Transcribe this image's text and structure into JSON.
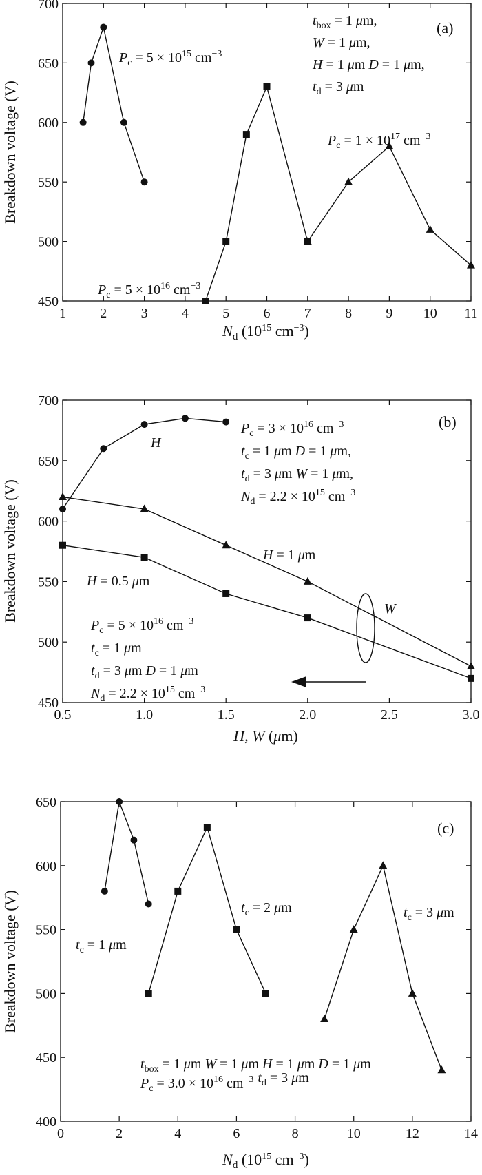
{
  "chart_data": [
    {
      "type": "line",
      "panel": "(a)",
      "xlabel_main": "N",
      "xlabel_sub": "d",
      "xlabel_rest": " (10",
      "xlabel_sup": "15",
      "xlabel_end": " cm⁻³)",
      "ylabel": "Breakdown voltage (V)",
      "xlim": [
        1,
        11
      ],
      "ylim": [
        450,
        700
      ],
      "xticks": [
        1,
        2,
        3,
        4,
        5,
        6,
        7,
        8,
        9,
        10,
        11
      ],
      "xtick_labels": [
        "1",
        "2",
        "3",
        "4",
        "5",
        "6",
        "7",
        "8",
        "9",
        "10",
        "11"
      ],
      "yticks": [
        450,
        500,
        550,
        600,
        650,
        700
      ],
      "ytick_labels": [
        "450",
        "500",
        "550",
        "600",
        "650",
        "700"
      ],
      "series": [
        {
          "marker": "circle",
          "x": [
            1.5,
            1.7,
            2.0,
            2.5,
            3.0
          ],
          "y": [
            600,
            650,
            680,
            600,
            550
          ]
        },
        {
          "marker": "square",
          "x": [
            4.5,
            5.0,
            5.5,
            6.0,
            7.0
          ],
          "y": [
            450,
            500,
            590,
            630,
            500
          ]
        },
        {
          "marker": "triangle",
          "x": [
            7.0,
            8.0,
            9.0,
            10.0,
            11.0
          ],
          "y": [
            500,
            550,
            580,
            510,
            480
          ]
        }
      ],
      "annotations": [
        {
          "key": "pc1",
          "text": "Pc = 5 × 10¹⁵ cm⁻³"
        },
        {
          "key": "pc2",
          "text": "Pc = 5 × 10¹⁶ cm⁻³"
        },
        {
          "key": "pc3",
          "text": "Pc = 1 × 10¹⁷ cm⁻³"
        },
        {
          "key": "cond1",
          "text": "tbox = 1 μm,"
        },
        {
          "key": "cond2",
          "text": "W = 1 μm,"
        },
        {
          "key": "cond3",
          "text": "H = 1 μm  D = 1 μm,"
        },
        {
          "key": "cond4",
          "text": "td = 3 μm"
        }
      ]
    },
    {
      "type": "line",
      "panel": "(b)",
      "xlabel": "H, W (μm)",
      "ylabel": "Breakdown voltage (V)",
      "xlim": [
        0.5,
        3.0
      ],
      "ylim": [
        450,
        700
      ],
      "xticks": [
        0.5,
        1.0,
        1.5,
        2.0,
        2.5,
        3.0
      ],
      "xtick_labels": [
        "0.5",
        "1.0",
        "1.5",
        "2.0",
        "2.5",
        "3.0"
      ],
      "yticks": [
        450,
        500,
        550,
        600,
        650,
        700
      ],
      "ytick_labels": [
        "450",
        "500",
        "550",
        "600",
        "650",
        "700"
      ],
      "series": [
        {
          "name": "H",
          "marker": "circle",
          "x": [
            0.5,
            0.75,
            1.0,
            1.25,
            1.5
          ],
          "y": [
            610,
            660,
            680,
            685,
            682
          ]
        },
        {
          "name": "H = 1 μm",
          "marker": "triangle",
          "x": [
            0.5,
            1.0,
            1.5,
            2.0,
            3.0
          ],
          "y": [
            620,
            610,
            580,
            550,
            480
          ]
        },
        {
          "name": "H = 0.5 μm",
          "marker": "square",
          "x": [
            0.5,
            1.0,
            1.5,
            2.0,
            3.0
          ],
          "y": [
            580,
            570,
            540,
            520,
            470
          ]
        }
      ],
      "annotations": [
        {
          "key": "H",
          "text": "H"
        },
        {
          "key": "W",
          "text": "W"
        },
        {
          "key": "h1",
          "text": "H = 1 μm"
        },
        {
          "key": "h05",
          "text": "H = 0.5 μm"
        },
        {
          "key": "c1",
          "text": "Pc = 3 × 10¹⁶ cm⁻³"
        },
        {
          "key": "c2",
          "text": "tc = 1 μm  D = 1 μm,"
        },
        {
          "key": "c3",
          "text": "td = 3 μm  W = 1 μm,"
        },
        {
          "key": "c4",
          "text": "Nd = 2.2 × 10¹⁵ cm⁻³"
        },
        {
          "key": "d1",
          "text": "Pc = 5 × 10¹⁶ cm⁻³"
        },
        {
          "key": "d2",
          "text": "tc = 1 μm"
        },
        {
          "key": "d3",
          "text": "td = 3 μm  D = 1 μm"
        },
        {
          "key": "d4",
          "text": "Nd = 2.2 × 10¹⁵ cm⁻³"
        }
      ]
    },
    {
      "type": "line",
      "panel": "(c)",
      "xlabel": "Nd (10¹⁵ cm⁻³)",
      "ylabel": "Breakdown voltage (V)",
      "xlim": [
        0,
        14
      ],
      "ylim": [
        400,
        650
      ],
      "xticks": [
        0,
        2,
        4,
        6,
        8,
        10,
        12,
        14
      ],
      "xtick_labels": [
        "0",
        "2",
        "4",
        "6",
        "8",
        "10",
        "12",
        "14"
      ],
      "yticks": [
        400,
        450,
        500,
        550,
        600,
        650
      ],
      "ytick_labels": [
        "400",
        "450",
        "500",
        "550",
        "600",
        "650"
      ],
      "series": [
        {
          "name": "tc = 1 μm",
          "marker": "circle",
          "x": [
            1.5,
            2.0,
            2.5,
            3.0
          ],
          "y": [
            580,
            650,
            620,
            570
          ]
        },
        {
          "name": "tc = 2 μm",
          "marker": "square",
          "x": [
            3.0,
            4.0,
            5.0,
            6.0,
            7.0
          ],
          "y": [
            500,
            580,
            630,
            550,
            500
          ]
        },
        {
          "name": "tc = 3 μm",
          "marker": "triangle",
          "x": [
            9.0,
            10.0,
            11.0,
            12.0,
            13.0
          ],
          "y": [
            480,
            550,
            600,
            500,
            440
          ]
        }
      ],
      "annotations": [
        {
          "key": "t1",
          "text": "tc = 1 μm"
        },
        {
          "key": "t2",
          "text": "tc = 2 μm"
        },
        {
          "key": "t3",
          "text": "tc = 3 μm"
        },
        {
          "key": "e1",
          "text": "tbox = 1 μm  W = 1 μm  H = 1 μm  D = 1 μm"
        },
        {
          "key": "e2",
          "text": "Pc = 3.0 × 10¹⁶ cm⁻³  td = 3 μm"
        }
      ]
    }
  ]
}
